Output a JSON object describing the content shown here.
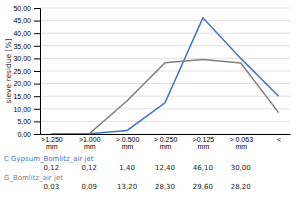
{
  "chart_data": {
    "type": "line",
    "y_label": "sieve residue [%]",
    "categories": [
      ">1.250\nmm",
      ">1.000\nmm",
      "> 0.500\nmm",
      "> 0.250\nmm",
      ">0.125\nmm",
      "> 0.063\nmm",
      "<"
    ],
    "series": [
      {
        "name": "C Gypsum_Bomlitz_air jet",
        "color": "#4472C4",
        "values": [
          0.12,
          0.12,
          1.4,
          12.4,
          46.1,
          30.0,
          15.0
        ],
        "value_labels": [
          "0,12",
          "0,12",
          "1,40",
          "12,40",
          "46,10",
          "30,00",
          null
        ]
      },
      {
        "name": "G_Bomlitz_air jet",
        "color": "#808080",
        "values": [
          0.03,
          0.09,
          13.2,
          28.3,
          29.6,
          28.2,
          8.5
        ],
        "value_labels": [
          "0,03",
          "0,09",
          "13,20",
          "28,30",
          "29,60",
          "28,20",
          null
        ]
      }
    ],
    "ylim": [
      0,
      50
    ],
    "yticks": [
      {
        "value": 0,
        "label": "0,00"
      },
      {
        "value": 5,
        "label": "5,00"
      },
      {
        "value": 10,
        "label": "10,00"
      },
      {
        "value": 15,
        "label": "15,00"
      },
      {
        "value": 20,
        "label": "20,00"
      },
      {
        "value": 25,
        "label": "25,00"
      },
      {
        "value": 30,
        "label": "30,00"
      },
      {
        "value": 35,
        "label": "35,00"
      },
      {
        "value": 40,
        "label": "40,00"
      },
      {
        "value": 45,
        "label": "45,00"
      },
      {
        "value": 50,
        "label": "50,00"
      }
    ],
    "grid": true
  }
}
